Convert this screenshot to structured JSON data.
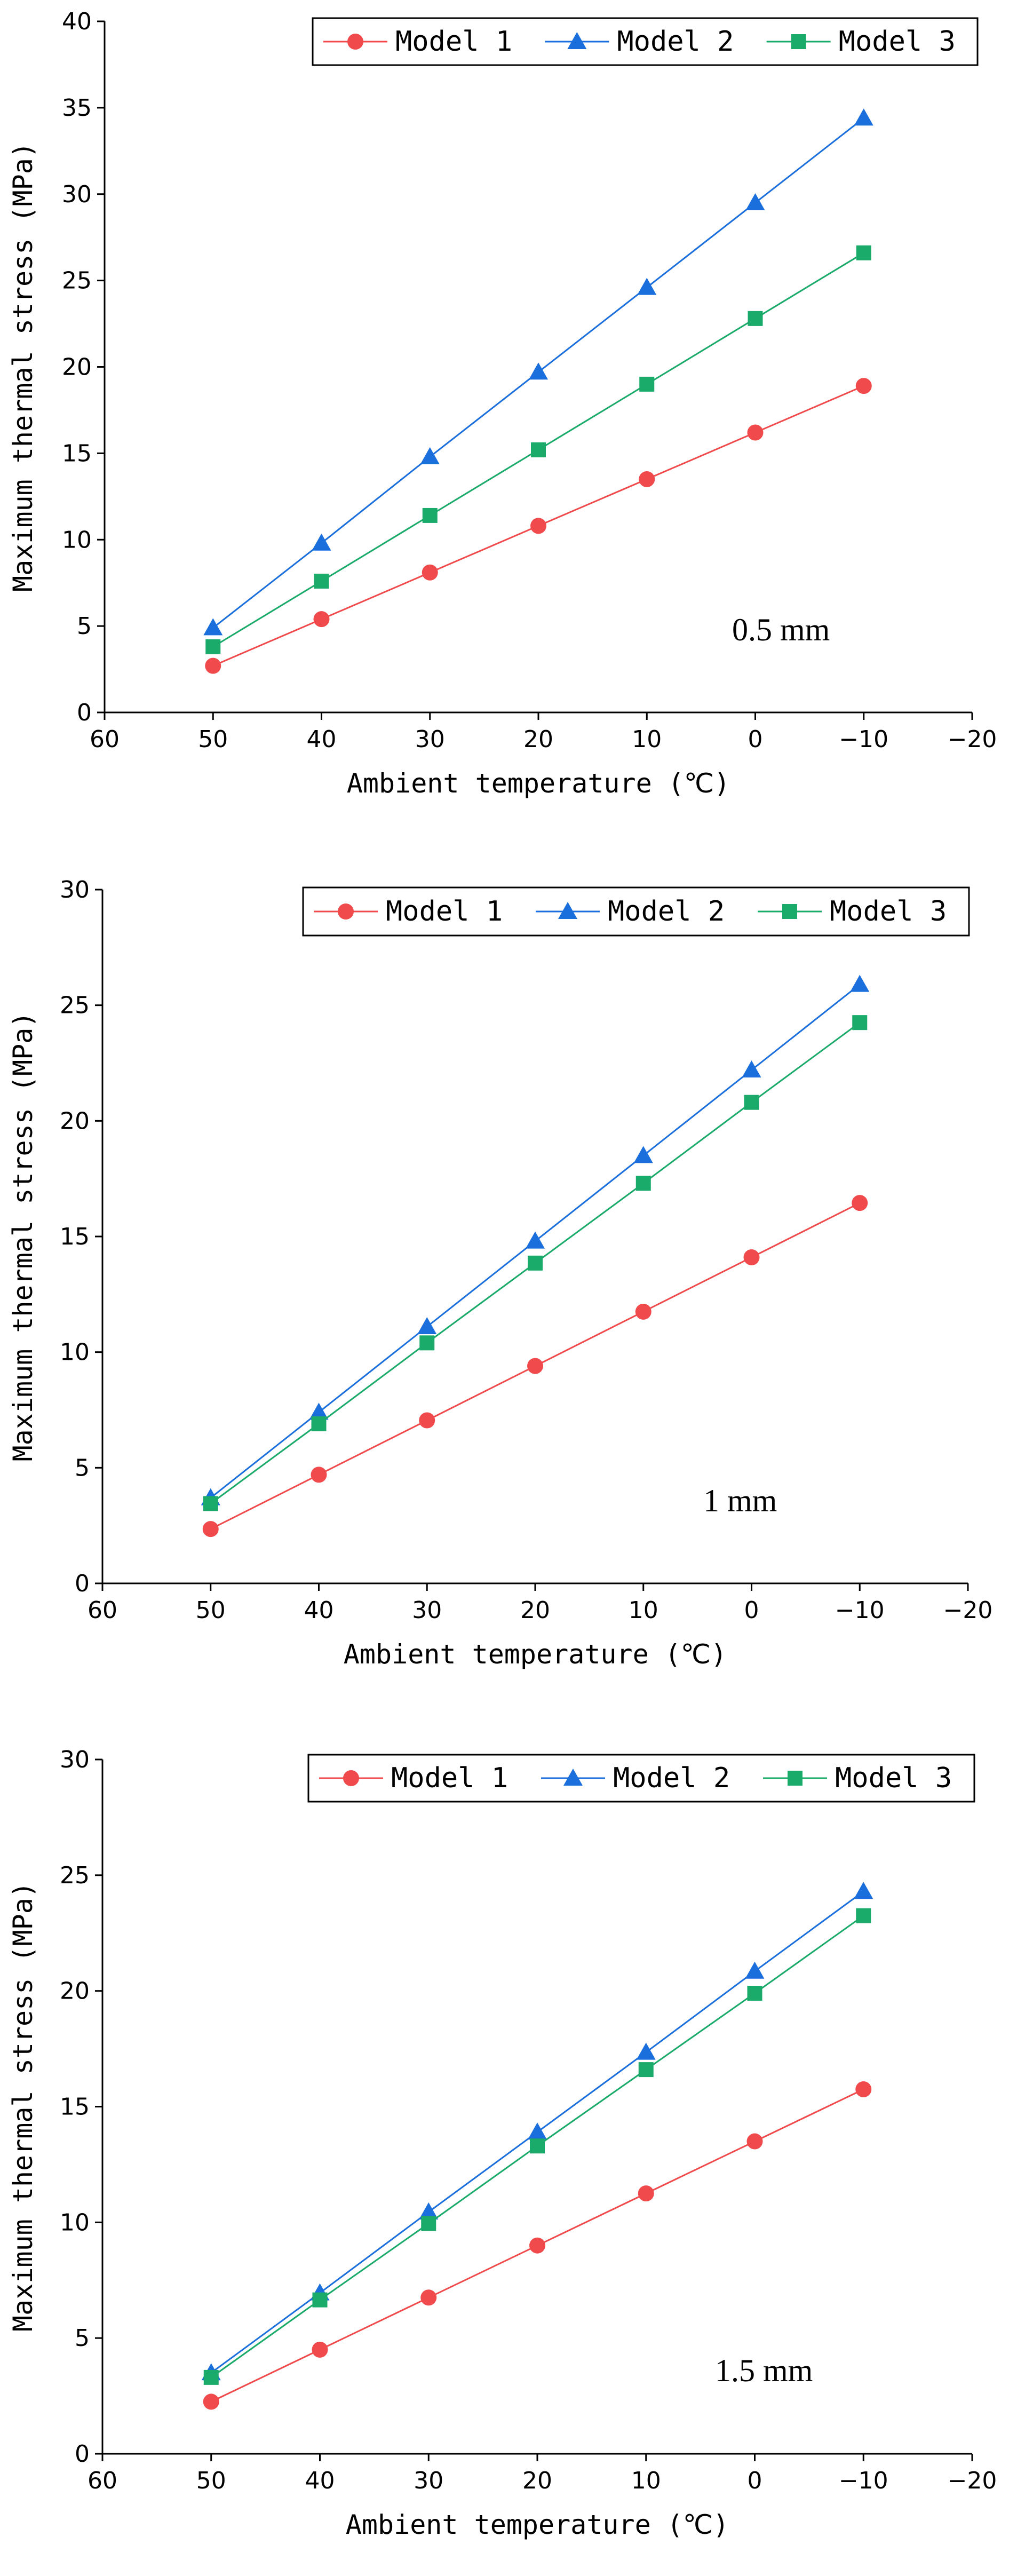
{
  "colors": {
    "model1": "#f04a4c",
    "model2": "#1a6fdc",
    "model3": "#1aaa6a"
  },
  "chart_data": [
    {
      "type": "line",
      "annotation": "0.5 mm",
      "xlabel": "Ambient temperature (℃)",
      "ylabel": "Maximum thermal stress (MPa)",
      "xlim": [
        60,
        -20
      ],
      "ylim": [
        0,
        40
      ],
      "xticks": [
        60,
        50,
        40,
        30,
        20,
        10,
        0,
        -10,
        -20
      ],
      "yticks": [
        0,
        5,
        10,
        15,
        20,
        25,
        30,
        35,
        40
      ],
      "x": [
        50,
        40,
        30,
        20,
        10,
        0,
        -10
      ],
      "series": [
        {
          "name": "Model 1",
          "marker": "circle",
          "values": [
            2.7,
            5.4,
            8.1,
            10.8,
            13.5,
            16.2,
            18.9
          ]
        },
        {
          "name": "Model 2",
          "marker": "triangle",
          "values": [
            4.9,
            9.8,
            14.8,
            19.7,
            24.6,
            29.5,
            34.4
          ]
        },
        {
          "name": "Model 3",
          "marker": "square",
          "values": [
            3.8,
            7.6,
            11.4,
            15.2,
            19.0,
            22.8,
            26.6
          ]
        }
      ]
    },
    {
      "type": "line",
      "annotation": "1 mm",
      "xlabel": "Ambient temperature (℃)",
      "ylabel": "Maximum thermal stress (MPa)",
      "xlim": [
        60,
        -20
      ],
      "ylim": [
        0,
        30
      ],
      "xticks": [
        60,
        50,
        40,
        30,
        20,
        10,
        0,
        -10,
        -20
      ],
      "yticks": [
        0,
        5,
        10,
        15,
        20,
        25,
        30
      ],
      "x": [
        50,
        40,
        30,
        20,
        10,
        0,
        -10
      ],
      "series": [
        {
          "name": "Model 1",
          "marker": "circle",
          "values": [
            2.35,
            4.7,
            7.05,
            9.4,
            11.75,
            14.1,
            16.45
          ]
        },
        {
          "name": "Model 2",
          "marker": "triangle",
          "values": [
            3.7,
            7.4,
            11.1,
            14.8,
            18.5,
            22.2,
            25.9
          ]
        },
        {
          "name": "Model 3",
          "marker": "square",
          "values": [
            3.45,
            6.9,
            10.4,
            13.85,
            17.3,
            20.8,
            24.25
          ]
        }
      ]
    },
    {
      "type": "line",
      "annotation": "1.5 mm",
      "xlabel": "Ambient temperature (℃)",
      "ylabel": "Maximum thermal stress (MPa)",
      "xlim": [
        60,
        -20
      ],
      "ylim": [
        0,
        30
      ],
      "xticks": [
        60,
        50,
        40,
        30,
        20,
        10,
        0,
        -10,
        -20
      ],
      "yticks": [
        0,
        5,
        10,
        15,
        20,
        25,
        30
      ],
      "x": [
        50,
        40,
        30,
        20,
        10,
        0,
        -10
      ],
      "series": [
        {
          "name": "Model 1",
          "marker": "circle",
          "values": [
            2.25,
            4.5,
            6.75,
            9.0,
            11.25,
            13.5,
            15.75
          ]
        },
        {
          "name": "Model 2",
          "marker": "triangle",
          "values": [
            3.5,
            6.95,
            10.45,
            13.9,
            17.35,
            20.85,
            24.3
          ]
        },
        {
          "name": "Model 3",
          "marker": "square",
          "values": [
            3.3,
            6.65,
            9.95,
            13.3,
            16.6,
            19.9,
            23.25
          ]
        }
      ]
    }
  ]
}
